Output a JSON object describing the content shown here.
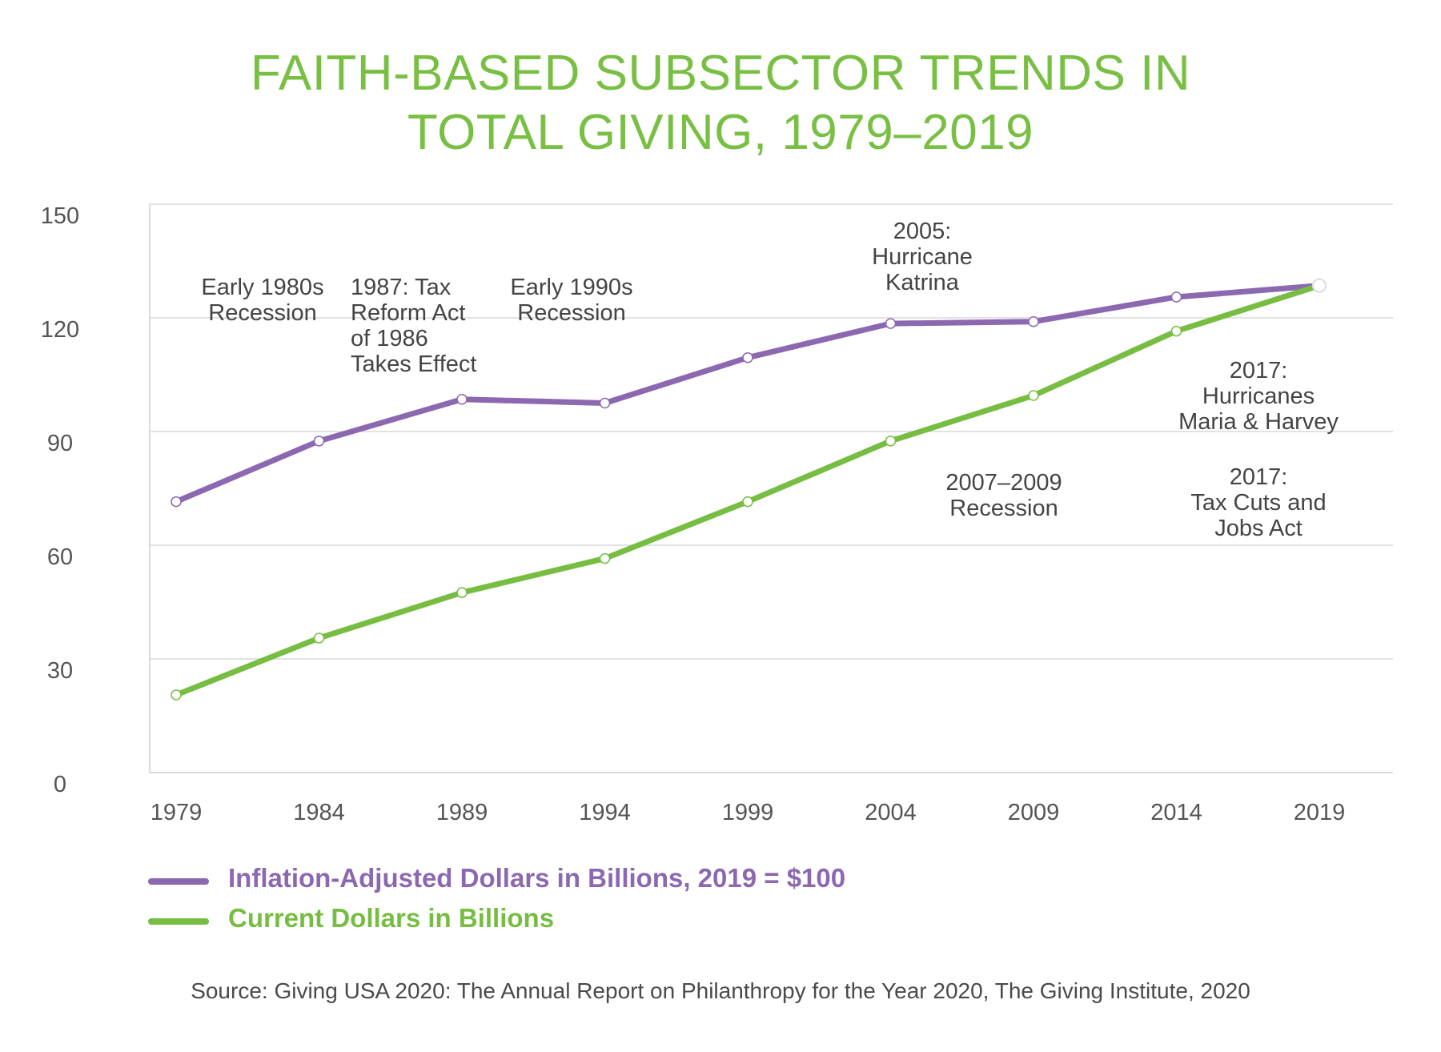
{
  "chart_data": {
    "type": "line",
    "title_lines": [
      "FAITH-BASED SUBSECTOR TRENDS IN",
      "TOTAL GIVING, 1979–2019"
    ],
    "x": [
      "1979",
      "1984",
      "1989",
      "1994",
      "1999",
      "2004",
      "2009",
      "2014",
      "2019"
    ],
    "ylim": [
      0,
      150
    ],
    "yticks": [
      "0",
      "30",
      "60",
      "90",
      "120",
      "150"
    ],
    "grid": true,
    "series": [
      {
        "name": "Inflation-Adjusted Dollars in Billions, 2019 = $100",
        "color": "#8c68b0",
        "values": [
          71.5,
          87.5,
          98.5,
          97.5,
          109.5,
          118.5,
          119,
          125.5,
          128.5
        ]
      },
      {
        "name": "Current Dollars in Billions",
        "color": "#76bd42",
        "values": [
          20.5,
          35.5,
          47.5,
          56.5,
          71.5,
          87.5,
          99.5,
          116.5,
          128.5
        ]
      }
    ],
    "annotations": [
      {
        "key": "early-1980s-recession",
        "lines": [
          "Early 1980s",
          "Recession"
        ]
      },
      {
        "key": "tax-reform-1987",
        "lines": [
          "1987: Tax",
          "Reform Act",
          "of 1986",
          "Takes Effect"
        ]
      },
      {
        "key": "early-1990s-recession",
        "lines": [
          "Early 1990s",
          "Recession"
        ]
      },
      {
        "key": "hurricane-katrina",
        "lines": [
          "2005:",
          "Hurricane",
          "Katrina"
        ]
      },
      {
        "key": "recession-2007-2009",
        "lines": [
          "2007–2009",
          "Recession"
        ]
      },
      {
        "key": "hurricanes-maria-harvey",
        "lines": [
          "2017:",
          "Hurricanes",
          "Maria & Harvey"
        ]
      },
      {
        "key": "tax-cuts-jobs-act",
        "lines": [
          "2017:",
          "Tax Cuts and",
          "Jobs Act"
        ]
      }
    ],
    "legend_position": "bottom-left"
  },
  "source": "Source: Giving USA 2020: The Annual Report on Philanthropy for the Year 2020, The Giving Institute, 2020"
}
